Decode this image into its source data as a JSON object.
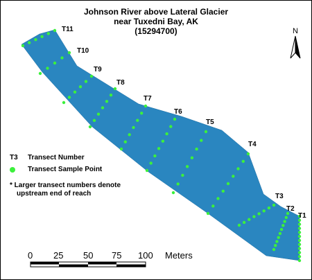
{
  "title": {
    "line1": "Johnson River above Lateral Glacier",
    "line2": "near Tuxedni Bay, AK",
    "line3": "(15294700)"
  },
  "legend": {
    "transect_key": "T3",
    "transect_text": "Transect Number",
    "sample_text": "Transect Sample Point",
    "note_line1": "* Larger transect numbers denote",
    "note_line2": "upstream end of reach"
  },
  "north_arrow": {
    "label": "N"
  },
  "scale_bar": {
    "ticks": [
      "0",
      "25",
      "50",
      "75",
      "100"
    ],
    "unit": "Meters"
  },
  "transects": [
    "T1",
    "T2",
    "T3",
    "T4",
    "T5",
    "T6",
    "T7",
    "T8",
    "T9",
    "T10",
    "T11"
  ],
  "colors": {
    "water": "#2a86c0",
    "point": "#3cf03c",
    "text": "#000000"
  }
}
